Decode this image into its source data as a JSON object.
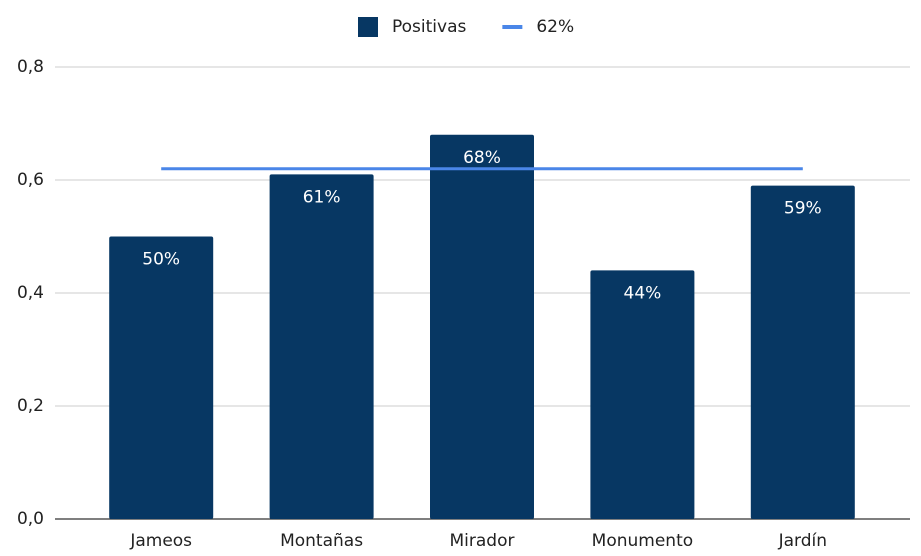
{
  "chart_data": {
    "type": "bar",
    "categories": [
      "Jameos",
      "Montañas",
      "Mirador",
      "Monumento",
      "Jardín"
    ],
    "series": [
      {
        "name": "Positivas",
        "type": "bar",
        "color": "#073763",
        "values": [
          0.5,
          0.61,
          0.68,
          0.44,
          0.59
        ],
        "value_labels": [
          "50%",
          "61%",
          "68%",
          "44%",
          "59%"
        ]
      },
      {
        "name": "62%",
        "type": "line",
        "color": "#4a86e8",
        "values": [
          0.62,
          0.62,
          0.62,
          0.62,
          0.62
        ]
      }
    ],
    "ylim": [
      0,
      0.8
    ],
    "yticks": [
      {
        "value": 0,
        "label": "0,0"
      },
      {
        "value": 0.2,
        "label": "0,2"
      },
      {
        "value": 0.4,
        "label": "0,4"
      },
      {
        "value": 0.6,
        "label": "0,6"
      },
      {
        "value": 0.8,
        "label": "0,8"
      }
    ],
    "grid": true,
    "legend": "top"
  }
}
